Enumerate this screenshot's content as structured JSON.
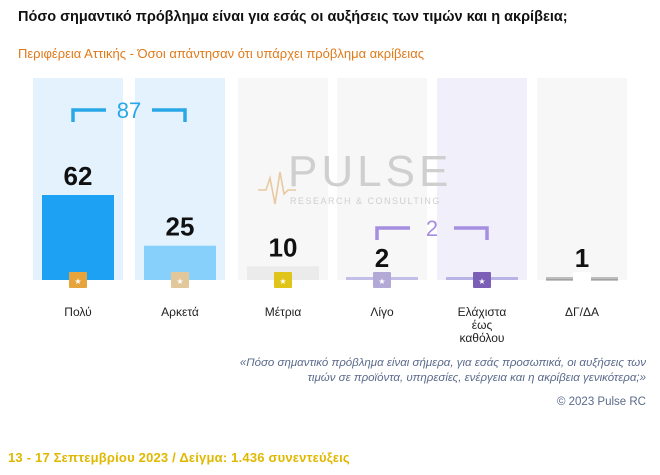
{
  "header": {
    "title": "Πόσο σημαντικό πρόβλημα είναι για εσάς οι αυξήσεις των τιμών και η ακρίβεια;",
    "subtitle": "Περιφέρεια Αττικής - Όσοι απάντησαν ότι υπάρχει πρόβλημα ακρίβειας"
  },
  "watermark": {
    "brand": "PULSE",
    "tagline": "RESEARCH & CONSULTING"
  },
  "chart_data": {
    "type": "bar",
    "title": "Πόσο σημαντικό πρόβλημα είναι για εσάς οι αυξήσεις των τιμών και η ακρίβεια;",
    "subtitle": "Περιφέρεια Αττικής - Όσοι απάντησαν ότι υπάρχει πρόβλημα ακρίβειας",
    "categories": [
      "Πολύ",
      "Αρκετά",
      "Μέτρια",
      "Λίγο",
      "Ελάχιστα έως καθόλου",
      "ΔΓ/ΔΑ"
    ],
    "values": [
      62,
      25,
      10,
      2,
      0,
      1
    ],
    "value_labels": [
      "62",
      "25",
      "10",
      "2",
      "",
      "1"
    ],
    "bar_colors": [
      "#1da1f2",
      "#86d0fb",
      "#ebebeb",
      "#c3bfe8",
      "#b9b4e6",
      "#bdbdbd"
    ],
    "column_bg_colors": [
      "#e4f2fd",
      "#e4f2fd",
      "#f7f7f7",
      "#f7f7f7",
      "#f1f0fa",
      "#f7f7f7"
    ],
    "icon_colors": [
      "#e8a43c",
      "#e2c79b",
      "#e0c419",
      "#b3a9d6",
      "#7b5fb7",
      "#ffffff"
    ],
    "brackets": [
      {
        "from": 0,
        "to": 1,
        "label": "87",
        "color": "#29a8e8"
      },
      {
        "from": 3,
        "to": 4,
        "label": "2",
        "color": "#a68ee0"
      }
    ],
    "ylim": [
      0,
      62
    ],
    "grid": false,
    "legend": "none"
  },
  "notes": {
    "quote": "«Πόσο σημαντικό πρόβλημα είναι σήμερα, για εσάς προσωπικά, οι αυξήσεις των τιμών σε προϊόντα, υπηρεσίες, ενέργεια και η ακρίβεια γενικότερα;»",
    "copyright": "© 2023 Pulse RC",
    "footer": "13 - 17  Σεπτεμβρίου  2023  /  Δείγμα:  1.436 συνεντεύξεις"
  }
}
